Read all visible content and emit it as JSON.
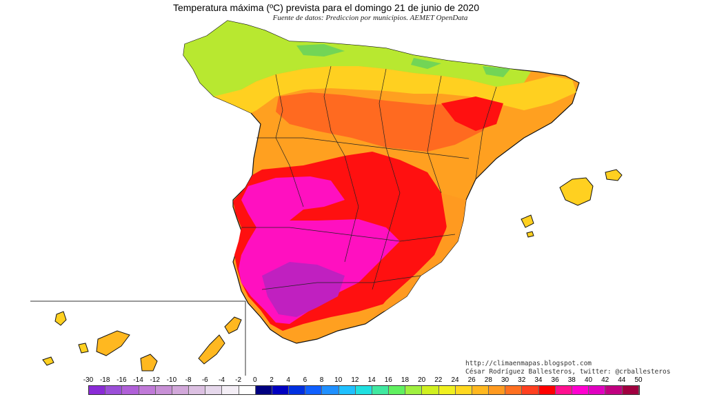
{
  "title": "Temperatura máxima (ºC) prevista para el domingo 21 de junio de 2020",
  "subtitle": "Fuente de datos: Prediccion por municipios. AEMET OpenData",
  "credits": {
    "url": "http://climaenmapas.blogspot.com",
    "author": "César Rodríguez Ballesteros, twitter: @crballesteros"
  },
  "legend": {
    "ticks": [
      "-30",
      "-18",
      "-16",
      "-14",
      "-12",
      "-10",
      "-8",
      "-6",
      "-4",
      "-2",
      "0",
      "2",
      "4",
      "6",
      "8",
      "10",
      "12",
      "14",
      "16",
      "18",
      "20",
      "22",
      "24",
      "26",
      "28",
      "30",
      "32",
      "34",
      "36",
      "38",
      "40",
      "42",
      "44",
      "50"
    ],
    "colors": [
      "#8a2bd6",
      "#9b4fd8",
      "#b060d8",
      "#c07ad8",
      "#c890d6",
      "#d2a8da",
      "#dcc0e2",
      "#e6d8ec",
      "#f4eef6",
      "#ffffff",
      "#000080",
      "#0000c0",
      "#0030e0",
      "#1060ff",
      "#2090ff",
      "#20c0ff",
      "#20e0e0",
      "#40e8a0",
      "#60f060",
      "#a0f040",
      "#d0f020",
      "#f0f020",
      "#ffd820",
      "#ffb820",
      "#ff9a20",
      "#ff7020",
      "#ff4020",
      "#ff0000",
      "#ff1090",
      "#ff00d0",
      "#e000c0",
      "#c00080",
      "#a00040"
    ]
  },
  "colors": {
    "cool": "#b8e830",
    "mild": "#ffd020",
    "warm": "#ffa020",
    "hot": "#ff6a20",
    "very_hot": "#ff1010",
    "extreme": "#ff10c0",
    "peak": "#c020c0",
    "green": "#60d060"
  }
}
